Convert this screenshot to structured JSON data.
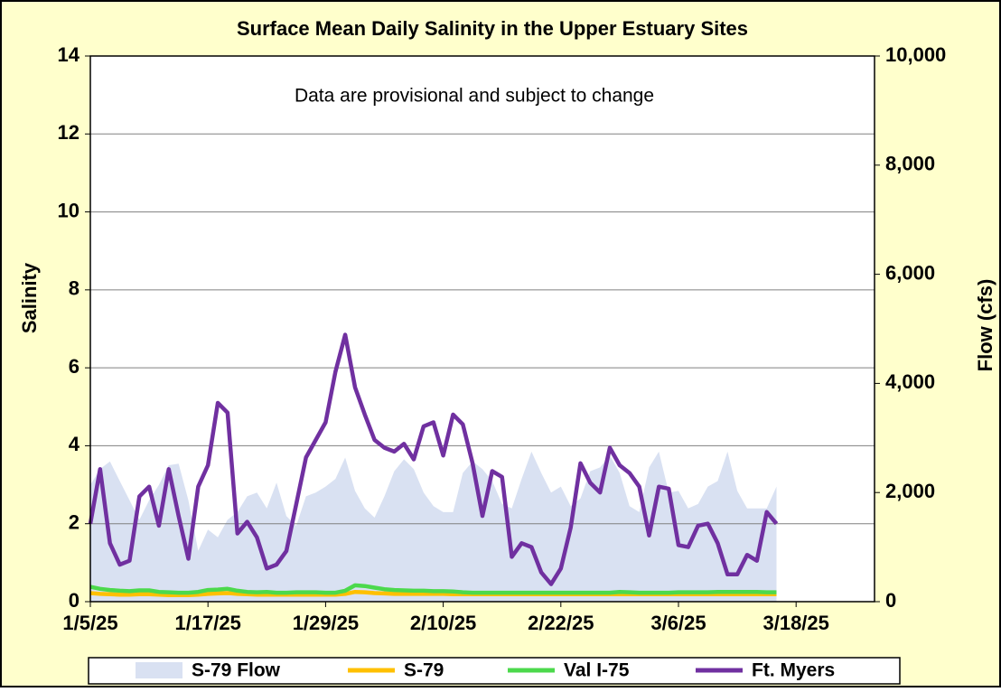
{
  "chart_data": {
    "type": "line",
    "title": "Surface Mean Daily Salinity in the Upper Estuary Sites",
    "annotation": "Data are provisional and subject to change",
    "y_label": "Salinity",
    "y2_label": "Flow (cfs)",
    "x": [
      "2025-01-05",
      "2025-01-06",
      "2025-01-07",
      "2025-01-08",
      "2025-01-09",
      "2025-01-10",
      "2025-01-11",
      "2025-01-12",
      "2025-01-13",
      "2025-01-14",
      "2025-01-15",
      "2025-01-16",
      "2025-01-17",
      "2025-01-18",
      "2025-01-19",
      "2025-01-20",
      "2025-01-21",
      "2025-01-22",
      "2025-01-23",
      "2025-01-24",
      "2025-01-25",
      "2025-01-26",
      "2025-01-27",
      "2025-01-28",
      "2025-01-29",
      "2025-01-30",
      "2025-01-31",
      "2025-02-01",
      "2025-02-02",
      "2025-02-03",
      "2025-02-04",
      "2025-02-05",
      "2025-02-06",
      "2025-02-07",
      "2025-02-08",
      "2025-02-09",
      "2025-02-10",
      "2025-02-11",
      "2025-02-12",
      "2025-02-13",
      "2025-02-14",
      "2025-02-15",
      "2025-02-16",
      "2025-02-17",
      "2025-02-18",
      "2025-02-19",
      "2025-02-20",
      "2025-02-21",
      "2025-02-22",
      "2025-02-23",
      "2025-02-24",
      "2025-02-25",
      "2025-02-26",
      "2025-02-27",
      "2025-02-28",
      "2025-03-01",
      "2025-03-02",
      "2025-03-03",
      "2025-03-04",
      "2025-03-05",
      "2025-03-06",
      "2025-03-07",
      "2025-03-08",
      "2025-03-09",
      "2025-03-10",
      "2025-03-11",
      "2025-03-12",
      "2025-03-13",
      "2025-03-14",
      "2025-03-15",
      "2025-03-16"
    ],
    "xlim": [
      "2025-01-05",
      "2025-03-26"
    ],
    "xticks": [
      {
        "value": "2025-01-05",
        "label": "1/5/25"
      },
      {
        "value": "2025-01-17",
        "label": "1/17/25"
      },
      {
        "value": "2025-01-29",
        "label": "1/29/25"
      },
      {
        "value": "2025-02-10",
        "label": "2/10/25"
      },
      {
        "value": "2025-02-22",
        "label": "2/22/25"
      },
      {
        "value": "2025-03-06",
        "label": "3/6/25"
      },
      {
        "value": "2025-03-18",
        "label": "3/18/25"
      }
    ],
    "ylim": [
      0,
      14
    ],
    "yticks": [
      0,
      2,
      4,
      6,
      8,
      10,
      12,
      14
    ],
    "y2lim": [
      0,
      10000
    ],
    "y2ticks": [
      0,
      {
        "value": 2000,
        "label": "2,000"
      },
      {
        "value": 4000,
        "label": "4,000"
      },
      {
        "value": 6000,
        "label": "6,000"
      },
      {
        "value": 8000,
        "label": "8,000"
      },
      {
        "value": 10000,
        "label": "10,000"
      }
    ],
    "grid": true,
    "series": [
      {
        "name": "S-79 Flow",
        "color": "#d9e1f2",
        "style": "area",
        "axis": "y2",
        "values": [
          2140,
          2430,
          2570,
          2210,
          1860,
          1500,
          1860,
          2140,
          2500,
          2530,
          1860,
          930,
          1320,
          1180,
          1500,
          1640,
          1930,
          2000,
          1710,
          2180,
          1570,
          1390,
          1930,
          2000,
          2110,
          2250,
          2640,
          2030,
          1710,
          1540,
          1930,
          2390,
          2610,
          2430,
          2000,
          1750,
          1640,
          1640,
          2360,
          2570,
          2430,
          2210,
          1790,
          1710,
          2250,
          2750,
          2360,
          2000,
          2110,
          1750,
          1890,
          2390,
          2460,
          2680,
          2360,
          1750,
          1640,
          2460,
          2750,
          2000,
          2030,
          1710,
          1790,
          2110,
          2210,
          2750,
          2030,
          1710,
          1710,
          1710,
          2110
        ]
      },
      {
        "name": "S-79",
        "color": "#ffc000",
        "style": "line",
        "values": [
          0.22,
          0.2,
          0.19,
          0.18,
          0.18,
          0.19,
          0.19,
          0.18,
          0.17,
          0.17,
          0.17,
          0.18,
          0.2,
          0.21,
          0.22,
          0.2,
          0.19,
          0.18,
          0.18,
          0.18,
          0.18,
          0.18,
          0.18,
          0.18,
          0.18,
          0.18,
          0.2,
          0.25,
          0.24,
          0.22,
          0.21,
          0.2,
          0.2,
          0.2,
          0.2,
          0.2,
          0.2,
          0.19,
          0.19,
          0.19,
          0.19,
          0.19,
          0.19,
          0.19,
          0.19,
          0.19,
          0.19,
          0.19,
          0.19,
          0.19,
          0.19,
          0.19,
          0.19,
          0.19,
          0.19,
          0.19,
          0.19,
          0.19,
          0.19,
          0.19,
          0.19,
          0.19,
          0.19,
          0.19,
          0.19,
          0.19,
          0.19,
          0.19,
          0.19,
          0.19,
          0.19
        ]
      },
      {
        "name": "Val I-75",
        "color": "#4cd94c",
        "style": "line",
        "values": [
          0.38,
          0.33,
          0.3,
          0.28,
          0.27,
          0.29,
          0.29,
          0.25,
          0.24,
          0.23,
          0.23,
          0.25,
          0.3,
          0.31,
          0.33,
          0.28,
          0.25,
          0.24,
          0.25,
          0.23,
          0.23,
          0.24,
          0.24,
          0.24,
          0.23,
          0.23,
          0.28,
          0.42,
          0.4,
          0.36,
          0.32,
          0.3,
          0.29,
          0.28,
          0.28,
          0.27,
          0.27,
          0.26,
          0.24,
          0.23,
          0.23,
          0.23,
          0.23,
          0.23,
          0.23,
          0.23,
          0.23,
          0.23,
          0.23,
          0.23,
          0.23,
          0.23,
          0.23,
          0.23,
          0.25,
          0.24,
          0.23,
          0.23,
          0.23,
          0.23,
          0.24,
          0.24,
          0.24,
          0.24,
          0.25,
          0.25,
          0.25,
          0.25,
          0.25,
          0.24,
          0.24
        ]
      },
      {
        "name": "Ft. Myers",
        "color": "#7030a0",
        "style": "line",
        "values": [
          2.0,
          3.4,
          1.5,
          0.95,
          1.05,
          2.7,
          2.95,
          1.95,
          3.4,
          2.2,
          1.1,
          2.95,
          3.5,
          5.1,
          4.85,
          1.75,
          2.05,
          1.65,
          0.85,
          0.95,
          1.3,
          2.5,
          3.7,
          4.15,
          4.6,
          5.9,
          6.85,
          5.5,
          4.8,
          4.15,
          3.95,
          3.85,
          4.05,
          3.65,
          4.5,
          4.6,
          3.75,
          4.8,
          4.55,
          3.55,
          2.2,
          3.35,
          3.2,
          1.15,
          1.5,
          1.4,
          0.75,
          0.45,
          0.85,
          1.9,
          3.55,
          3.05,
          2.8,
          3.95,
          3.5,
          3.3,
          2.95,
          1.7,
          2.95,
          2.9,
          1.45,
          1.4,
          1.95,
          2.0,
          1.5,
          0.7,
          0.7,
          1.2,
          1.05,
          2.3,
          2.0
        ]
      }
    ]
  }
}
